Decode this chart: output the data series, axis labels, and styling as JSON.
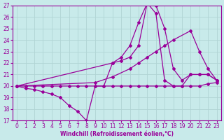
{
  "xlabel": "Windchill (Refroidissement éolien,°C)",
  "bg_color": "#c8eaea",
  "grid_color": "#b0d4d4",
  "line_color": "#990099",
  "xlim": [
    -0.5,
    23.5
  ],
  "ylim": [
    17,
    27
  ],
  "xticks": [
    0,
    1,
    2,
    3,
    4,
    5,
    6,
    7,
    8,
    9,
    10,
    11,
    12,
    13,
    14,
    15,
    16,
    17,
    18,
    19,
    20,
    21,
    22,
    23
  ],
  "yticks": [
    17,
    18,
    19,
    20,
    21,
    22,
    23,
    24,
    25,
    26,
    27
  ],
  "lines": [
    {
      "x": [
        0,
        1,
        2,
        3,
        4,
        5,
        6,
        7,
        8,
        9,
        10,
        11,
        12,
        13,
        14,
        15,
        16,
        17,
        18,
        19,
        20,
        21,
        22,
        23
      ],
      "y": [
        20.0,
        20.0,
        20.0,
        20.0,
        20.0,
        20.0,
        20.0,
        20.0,
        20.0,
        20.0,
        20.0,
        20.0,
        20.0,
        20.0,
        20.0,
        20.0,
        20.0,
        20.0,
        20.0,
        20.0,
        20.0,
        20.0,
        20.2,
        20.3
      ]
    },
    {
      "x": [
        0,
        9,
        11,
        13,
        14,
        15,
        16,
        17,
        18,
        20,
        21,
        22,
        23
      ],
      "y": [
        20.0,
        20.3,
        20.8,
        21.5,
        22.0,
        22.5,
        23.0,
        23.5,
        24.0,
        24.8,
        23.0,
        21.5,
        20.5
      ]
    },
    {
      "x": [
        0,
        11,
        12,
        13,
        14,
        15,
        16,
        17,
        18,
        19,
        20,
        21,
        22,
        23
      ],
      "y": [
        20.0,
        22.0,
        22.5,
        23.5,
        25.5,
        27.2,
        27.0,
        25.0,
        21.5,
        20.5,
        21.0,
        21.0,
        21.0,
        20.5
      ]
    },
    {
      "x": [
        0,
        1,
        2,
        3,
        4,
        5,
        6,
        7,
        8,
        9,
        10,
        11,
        12,
        13,
        14,
        15,
        16,
        17,
        18,
        19,
        20,
        21,
        22,
        23
      ],
      "y": [
        20.0,
        19.8,
        19.7,
        19.5,
        19.3,
        19.0,
        18.3,
        17.8,
        17.0,
        20.0,
        20.0,
        22.0,
        22.2,
        22.5,
        23.5,
        27.2,
        26.3,
        20.5,
        20.0,
        20.0,
        21.0,
        21.0,
        21.0,
        20.5
      ]
    }
  ]
}
